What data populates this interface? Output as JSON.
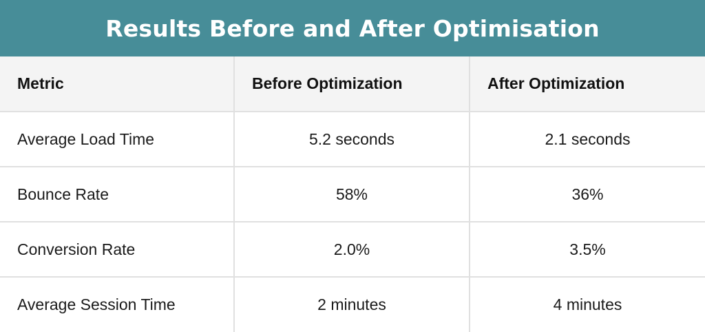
{
  "title": "Results Before and After Optimisation",
  "table": {
    "headers": [
      "Metric",
      "Before Optimization",
      "After Optimization"
    ],
    "rows": [
      [
        "Average Load Time",
        "5.2 seconds",
        "2.1 seconds"
      ],
      [
        "Bounce Rate",
        "58%",
        "36%"
      ],
      [
        "Conversion Rate",
        "2.0%",
        "3.5%"
      ],
      [
        "Average Session Time",
        "2 minutes",
        "4 minutes"
      ]
    ]
  },
  "colors": {
    "title_bar": "#478d98",
    "header_bg": "#f4f4f4",
    "grid": "#e0e0e0"
  }
}
